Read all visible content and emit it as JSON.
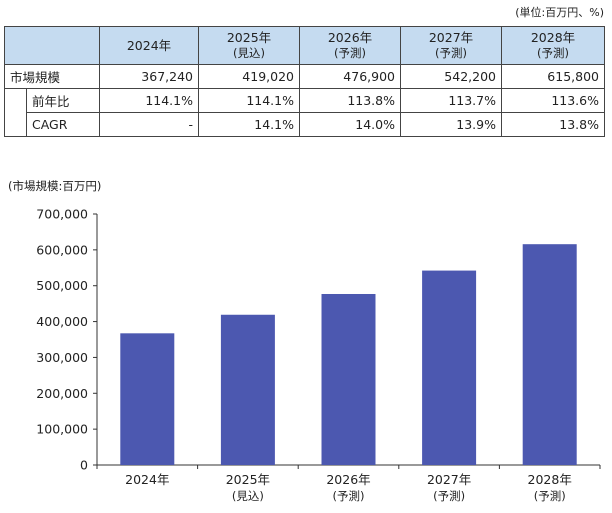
{
  "unit_note": "(単位:百万円、%)",
  "table": {
    "headers": [
      {
        "year": "",
        "sub": ""
      },
      {
        "year": "2024年",
        "sub": ""
      },
      {
        "year": "2025年",
        "sub": "(見込)"
      },
      {
        "year": "2026年",
        "sub": "(予測)"
      },
      {
        "year": "2027年",
        "sub": "(予測)"
      },
      {
        "year": "2028年",
        "sub": "(予測)"
      }
    ],
    "rows": [
      {
        "label": "市場規模",
        "values": [
          "367,240",
          "419,020",
          "476,900",
          "542,200",
          "615,800"
        ]
      },
      {
        "label": "前年比",
        "values": [
          "114.1%",
          "114.1%",
          "113.8%",
          "113.7%",
          "113.6%"
        ]
      },
      {
        "label": "CAGR",
        "values": [
          "-",
          "14.1%",
          "14.0%",
          "13.9%",
          "13.8%"
        ]
      }
    ]
  },
  "chart_data": {
    "type": "bar",
    "title": "",
    "ylabel": "(市場規模:百万円)",
    "xlabel": "",
    "categories": [
      {
        "year": "2024年",
        "sub": ""
      },
      {
        "year": "2025年",
        "sub": "(見込)"
      },
      {
        "year": "2026年",
        "sub": "(予測)"
      },
      {
        "year": "2027年",
        "sub": "(予測)"
      },
      {
        "year": "2028年",
        "sub": "(予測)"
      }
    ],
    "values": [
      367240,
      419020,
      476900,
      542200,
      615800
    ],
    "ylim": [
      0,
      700000
    ],
    "yticks": [
      0,
      100000,
      200000,
      300000,
      400000,
      500000,
      600000,
      700000
    ],
    "ytick_labels": [
      "0",
      "100,000",
      "200,000",
      "300,000",
      "400,000",
      "500,000",
      "600,000",
      "700,000"
    ],
    "bar_color": "#4c58b0",
    "grid": false
  }
}
